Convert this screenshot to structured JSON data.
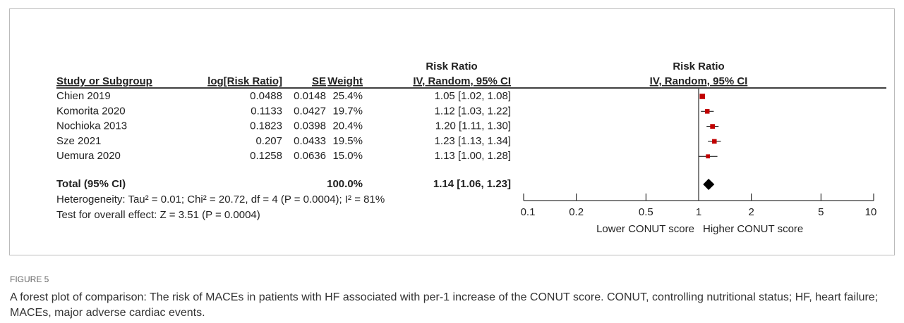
{
  "chart_data": {
    "type": "forest",
    "group_header": "Risk Ratio",
    "columns": [
      "Study or Subgroup",
      "log[Risk Ratio]",
      "SE",
      "Weight",
      "IV, Random, 95% CI"
    ],
    "plot_header": [
      "Risk Ratio",
      "IV, Random, 95% CI"
    ],
    "categories": [
      "Chien 2019",
      "Komorita 2020",
      "Nochioka 2013",
      "Sze 2021",
      "Uemura 2020"
    ],
    "log_rr": [
      0.0488,
      0.1133,
      0.1823,
      0.207,
      0.1258
    ],
    "se": [
      0.0148,
      0.0427,
      0.0398,
      0.0433,
      0.0636
    ],
    "weight": {
      "values": [
        25.4,
        19.7,
        20.4,
        19.5,
        15.0
      ],
      "value_labels": [
        "25.4%",
        "19.7%",
        "20.4%",
        "19.5%",
        "15.0%"
      ]
    },
    "values": [
      1.05,
      1.12,
      1.2,
      1.23,
      1.13
    ],
    "ci_low": [
      1.02,
      1.03,
      1.11,
      1.13,
      1.0
    ],
    "ci_high": [
      1.08,
      1.22,
      1.3,
      1.34,
      1.28
    ],
    "value_labels": [
      "1.05 [1.02, 1.08]",
      "1.12 [1.03, 1.22]",
      "1.20 [1.11, 1.30]",
      "1.23 [1.13, 1.34]",
      "1.13 [1.00, 1.28]"
    ],
    "total": {
      "name": "Total (95% CI)",
      "weight": 100.0,
      "weight_label": "100.0%",
      "value": 1.14,
      "ci_low": 1.06,
      "ci_high": 1.23,
      "value_label": "1.14 [1.06, 1.23]"
    },
    "notes": [
      "Heterogeneity: Tau² = 0.01; Chi² = 20.72, df = 4 (P = 0.0004); I² = 81%",
      "Test for overall effect: Z = 3.51 (P = 0.0004)"
    ],
    "marker_color": "#c00000",
    "xscale": "log",
    "xlim": [
      0.1,
      10
    ],
    "xticks": [
      0.1,
      0.2,
      0.5,
      1,
      2,
      5,
      10
    ],
    "xlabels": [
      "Lower CONUT score",
      "Higher CONUT score"
    ],
    "figure_label": "FIGURE 5",
    "caption": "A forest plot of comparison: The risk of MACEs in patients with HF associated with per-1 increase of the CONUT score. CONUT, controlling nutritional status; HF, heart failure; MACEs, major adverse cardiac events."
  }
}
